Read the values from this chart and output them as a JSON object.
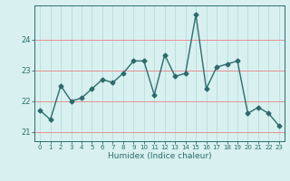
{
  "x": [
    0,
    1,
    2,
    3,
    4,
    5,
    6,
    7,
    8,
    9,
    10,
    11,
    12,
    13,
    14,
    15,
    16,
    17,
    18,
    19,
    20,
    21,
    22,
    23
  ],
  "y": [
    21.7,
    21.4,
    22.5,
    22.0,
    22.1,
    22.4,
    22.7,
    22.6,
    22.9,
    23.3,
    23.3,
    22.2,
    23.5,
    22.8,
    22.9,
    24.8,
    22.4,
    23.1,
    23.2,
    23.3,
    21.6,
    21.8,
    21.6,
    21.2
  ],
  "line_color": "#2d6b6b",
  "bg_color": "#d8f0f0",
  "grid_color_x": "#b0d8d8",
  "grid_color_y": "#e89090",
  "xlabel": "Humidex (Indice chaleur)",
  "yticks": [
    21,
    22,
    23,
    24
  ],
  "xticks": [
    0,
    1,
    2,
    3,
    4,
    5,
    6,
    7,
    8,
    9,
    10,
    11,
    12,
    13,
    14,
    15,
    16,
    17,
    18,
    19,
    20,
    21,
    22,
    23
  ],
  "ylim": [
    20.7,
    25.1
  ],
  "xlim": [
    -0.5,
    23.5
  ],
  "tick_color": "#2d6b6b",
  "marker": "D",
  "markersize": 2.5,
  "linewidth": 1.0
}
